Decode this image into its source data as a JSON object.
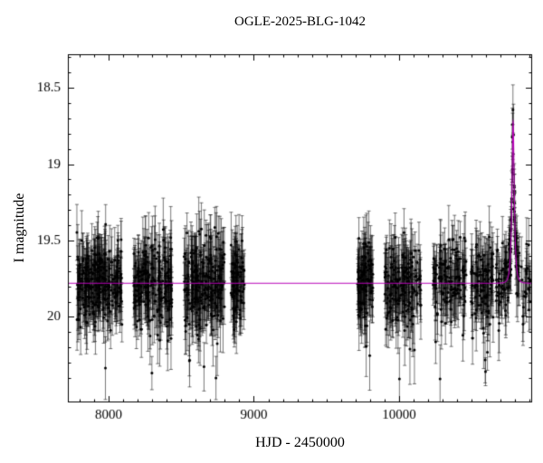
{
  "figure": {
    "title": "OGLE-2025-BLG-1042",
    "xlabel": "HJD - 2450000",
    "ylabel": "I magnitude"
  },
  "chart_data": {
    "type": "scatter",
    "title": "OGLE-2025-BLG-1042",
    "xlabel": "HJD - 2450000",
    "ylabel": "I magnitude",
    "xlim": [
      7720,
      10916
    ],
    "ylim": [
      20.56,
      18.28
    ],
    "y_axis_inverted": true,
    "grid": false,
    "legend": null,
    "xticks_major": [
      8000,
      9000,
      10000
    ],
    "xtick_labels": [
      "8000",
      "9000",
      "10000"
    ],
    "xtick_minor_step": 100,
    "yticks_major": [
      18.5,
      19.0,
      19.5,
      20.0
    ],
    "ytick_labels": [
      "18.5",
      "19",
      "19.5",
      "20"
    ],
    "ytick_minor_step": 0.1,
    "marker_color": "#000000",
    "errorbar_color": "rgba(0,0,0,0.60)",
    "model_color": "#b800b8",
    "baseline_mag": 19.78,
    "model": {
      "type": "microlensing_pspl",
      "t0": 10785,
      "tE": 15,
      "u0": 0.4,
      "baseline_mag": 19.78,
      "peak_mag": 18.72
    },
    "seasons": [
      {
        "t_start": 7782,
        "t_end": 8094,
        "n": 260,
        "scatter": 0.13,
        "err": 0.15
      },
      {
        "t_start": 8169,
        "t_end": 8437,
        "n": 210,
        "scatter": 0.13,
        "err": 0.16
      },
      {
        "t_start": 8518,
        "t_end": 8798,
        "n": 220,
        "scatter": 0.15,
        "err": 0.17
      },
      {
        "t_start": 8841,
        "t_end": 8935,
        "n": 80,
        "scatter": 0.13,
        "err": 0.16
      },
      {
        "t_start": 9714,
        "t_end": 9820,
        "n": 100,
        "scatter": 0.14,
        "err": 0.16
      },
      {
        "t_start": 9901,
        "t_end": 10150,
        "n": 160,
        "scatter": 0.13,
        "err": 0.16
      },
      {
        "t_start": 10231,
        "t_end": 10461,
        "n": 130,
        "scatter": 0.13,
        "err": 0.16
      },
      {
        "t_start": 10492,
        "t_end": 10648,
        "n": 100,
        "scatter": 0.14,
        "err": 0.16
      },
      {
        "t_start": 10667,
        "t_end": 10905,
        "n": 120,
        "scatter": 0.12,
        "err": 0.14
      }
    ],
    "extra_event_points": {
      "t_center": 10785,
      "half_width": 30,
      "n": 24,
      "scatter": 0.07,
      "err": 0.1
    },
    "outlier_fraction": 0.045,
    "outlier_scale": 0.28,
    "seed": 42
  }
}
